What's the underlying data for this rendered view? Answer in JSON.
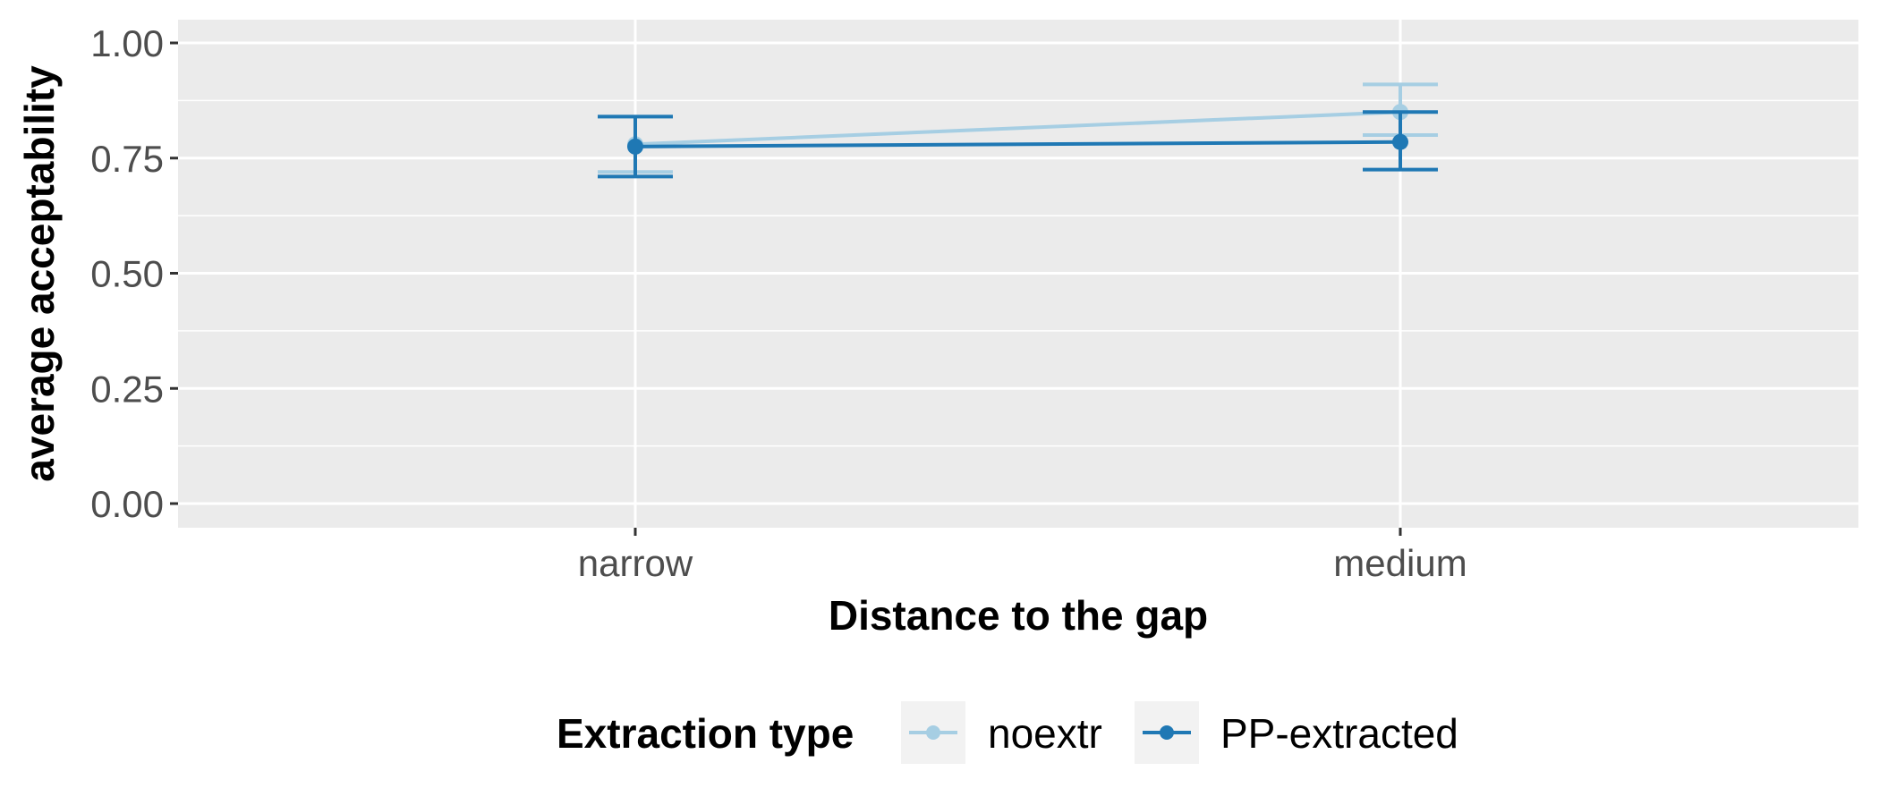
{
  "chart_data": {
    "type": "line",
    "xlabel": "Distance to the gap",
    "ylabel": "average acceptability",
    "categories": [
      "narrow",
      "medium"
    ],
    "ylim": [
      0,
      1
    ],
    "yticks": [
      "0.00",
      "0.25",
      "0.50",
      "0.75",
      "1.00"
    ],
    "ytick_values": [
      0,
      0.25,
      0.5,
      0.75,
      1.0
    ],
    "legend": {
      "title": "Extraction type",
      "position": "bottom"
    },
    "grid": true,
    "series": [
      {
        "name": "noextr",
        "color": "#a6cee3",
        "values": [
          0.78,
          0.85
        ],
        "error_low": [
          0.72,
          0.8
        ],
        "error_high": [
          0.84,
          0.91
        ]
      },
      {
        "name": "PP-extracted",
        "color": "#1f78b4",
        "values": [
          0.775,
          0.785
        ],
        "error_low": [
          0.71,
          0.725
        ],
        "error_high": [
          0.84,
          0.85
        ]
      }
    ]
  }
}
